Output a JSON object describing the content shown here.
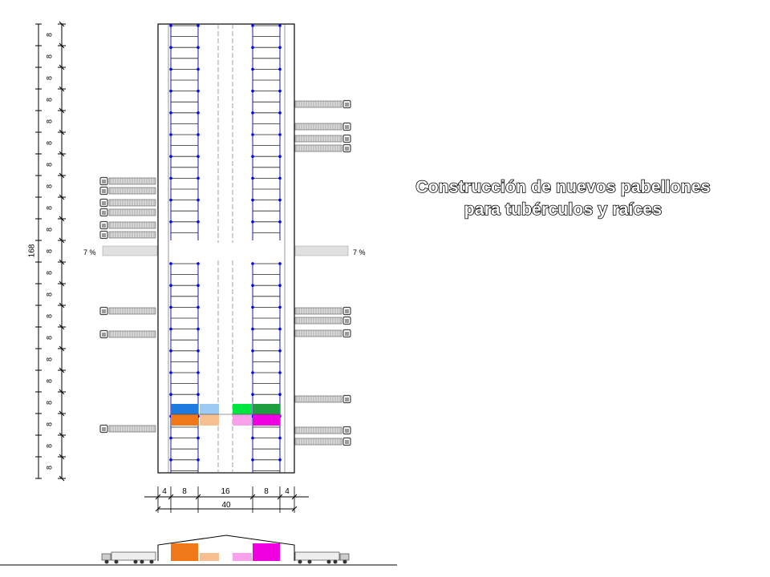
{
  "title": {
    "line1": "Construcción de nuevos pabellones",
    "line2": "para tubérculos y raíces"
  },
  "dimensions": {
    "total_length": "168",
    "segment_length": "8",
    "segment_count": 21,
    "total_width": "40",
    "width_segments": [
      "4",
      "8",
      "16",
      "8",
      "4"
    ]
  },
  "slope_labels": {
    "left": "7 %",
    "right": "7 %"
  },
  "colors": {
    "outline": "#000000",
    "rack_line": "#1a1aa0",
    "rack_dot": "#0000ff",
    "blue": "#1f7ae0",
    "light_blue": "#9ccaf5",
    "green": "#00e640",
    "dark_green": "#1e9e3e",
    "orange": "#f07818",
    "peach": "#f8c090",
    "pink": "#f9a0ea",
    "magenta": "#f000e0"
  }
}
